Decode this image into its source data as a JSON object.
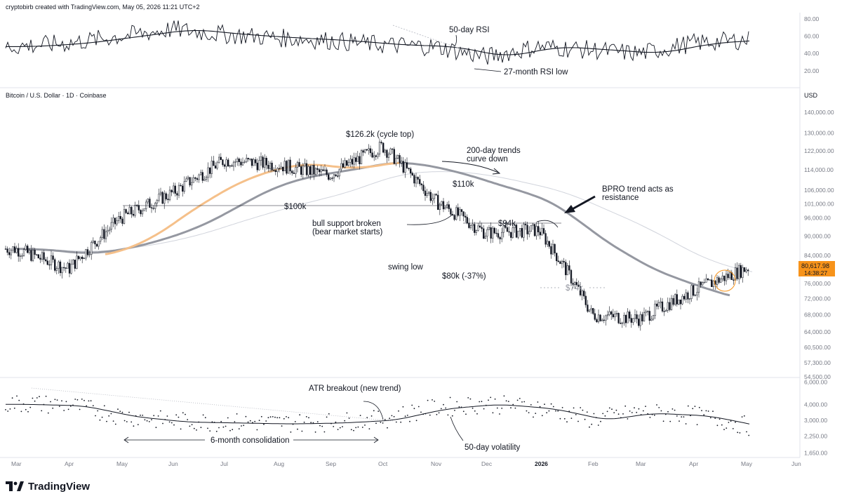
{
  "header": {
    "credit": "cryptobirb created with TradingView.com, May 05, 2026 11:21 UTC+2",
    "symbol": "Bitcoin / U.S. Dollar · 1D · Coinbase",
    "currency": "USD"
  },
  "brand": {
    "name": "TradingView"
  },
  "price_tag": {
    "price": "80,617.98",
    "timer": "14:38:27",
    "color": "#f7931a"
  },
  "annotations": {
    "rsi_50": "50-day RSI",
    "rsi_low": "27-month RSI low",
    "cycle_top": "$126.2k (cycle top)",
    "trend_curve_1": "200-day trends",
    "trend_curve_2": "curve down",
    "p110k": "$110k",
    "bpro_1": "BPRO trend acts as",
    "bpro_2": "resistance",
    "p100k": "$100k",
    "bull_1": "bull support broken",
    "bull_2": "(bear market starts)",
    "p94k": "$94k",
    "swing_low": "swing low",
    "p80k": "$80k (-37%)",
    "p74k": "$74k",
    "atr_breakout": "ATR breakout (new trend)",
    "consolidation": "6-month consolidation",
    "vol50": "50-day volatility"
  },
  "chart_data": [
    {
      "type": "line",
      "panel": "RSI",
      "y_ticks": [
        "80.00",
        "60.00",
        "40.00",
        "20.00"
      ],
      "ylim": [
        0,
        90
      ],
      "series": [
        {
          "name": "50-day RSI",
          "x": [
            "Mar",
            "Apr",
            "May",
            "Jun",
            "Jul",
            "Aug",
            "Sep",
            "Oct",
            "Nov",
            "Dec",
            "Jan",
            "Feb",
            "Mar",
            "Apr",
            "May"
          ],
          "values": [
            48,
            52,
            60,
            68,
            62,
            58,
            55,
            50,
            48,
            36,
            48,
            44,
            40,
            52,
            56
          ]
        }
      ]
    },
    {
      "type": "line",
      "panel": "Price",
      "title": "Bitcoin / U.S. Dollar · 1D · Coinbase",
      "y_scale": "log",
      "ylabel": "USD",
      "y_ticks": [
        "140,000.00",
        "130,000.00",
        "122,000.00",
        "114,000.00",
        "106,000.00",
        "101,000.00",
        "96,000.00",
        "90,000.00",
        "84,000.00",
        "80,000.00",
        "76,000.00",
        "72,000.00",
        "68,000.00",
        "64,000.00",
        "60,500.00",
        "57,300.00",
        "54,500.00"
      ],
      "x_ticks": [
        "Mar",
        "Apr",
        "May",
        "Jun",
        "Jul",
        "Aug",
        "Sep",
        "Oct",
        "Nov",
        "Dec",
        "2026",
        "Feb",
        "Mar",
        "Apr",
        "May",
        "Jun"
      ],
      "series": [
        {
          "name": "Bitcoin close",
          "x": [
            "Mar",
            "Apr",
            "May",
            "Jun",
            "Jul",
            "Aug",
            "Sep",
            "Oct",
            "Nov",
            "Dec",
            "Jan",
            "Feb",
            "Mar",
            "Apr",
            "May"
          ],
          "values": [
            86000,
            80000,
            96000,
            105000,
            118000,
            116000,
            112000,
            124000,
            102000,
            91000,
            92000,
            68000,
            67000,
            74000,
            80618
          ]
        }
      ]
    },
    {
      "type": "scatter",
      "panel": "ATR",
      "y_ticks": [
        "6,000.00",
        "4,000.00",
        "3,000.00",
        "2,250.00",
        "1,650.00"
      ],
      "y_scale": "log",
      "series": [
        {
          "name": "50-day volatility",
          "x": [
            "Mar",
            "Apr",
            "May",
            "Jun",
            "Jul",
            "Aug",
            "Sep",
            "Oct",
            "Nov",
            "Dec",
            "Jan",
            "Feb",
            "Mar",
            "Apr",
            "May"
          ],
          "values": [
            4000,
            3900,
            3200,
            2900,
            2850,
            2800,
            2850,
            3000,
            3700,
            4000,
            3700,
            3000,
            3400,
            3250,
            2650
          ]
        }
      ]
    }
  ]
}
